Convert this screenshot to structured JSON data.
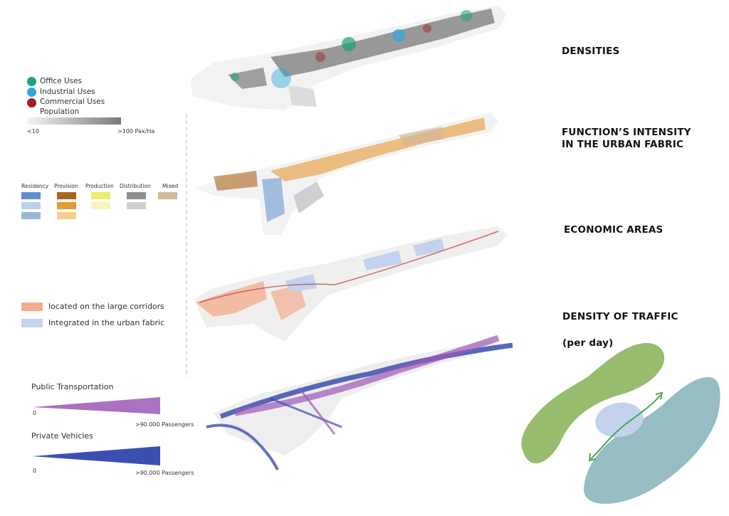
{
  "titles": {
    "densities": "DENSITIES",
    "function_line1": "FUNCTION’S INTENSITY",
    "function_line2": "IN THE URBAN FABRIC",
    "economic": "ECONOMIC  AREAS",
    "traffic": "DENSITY OF TRAFFIC",
    "traffic_sub": "(per day)"
  },
  "density_legend": {
    "items": [
      {
        "label": "Office Uses",
        "color": "#1fa37c"
      },
      {
        "label": "Industrial Uses",
        "color": "#2ba8dc"
      },
      {
        "label": "Commercial Uses",
        "color": "#a51d24"
      }
    ],
    "population_label": "Population",
    "scale_min": "<10",
    "scale_max": ">100 Pax/Ha"
  },
  "function_legend": {
    "groups": [
      {
        "label": "Residency",
        "colors": [
          "#5b8fd0",
          "#bcd0ee",
          "#9bb7d6"
        ]
      },
      {
        "label": "Provision",
        "colors": [
          "#a8651d",
          "#e69a33",
          "#f6cf8d"
        ]
      },
      {
        "label": "Production",
        "colors": [
          "#f1ea6b",
          "#f7f4b8"
        ]
      },
      {
        "label": "Distribution",
        "colors": [
          "#8f8f8f",
          "#cfcfcf"
        ]
      },
      {
        "label": "Mixed",
        "colors": [
          "#d4b896"
        ]
      }
    ]
  },
  "economic_legend": {
    "items": [
      {
        "label": "located on the large corridors",
        "color": "#f2ae8f"
      },
      {
        "label": "Integrated in the urban fabric",
        "color": "#c4d1ef"
      }
    ]
  },
  "traffic_legend": {
    "public": {
      "label": "Public Transportation",
      "min": "0",
      "max": ">90.000 Passengers",
      "color": "#9b59b6"
    },
    "private": {
      "label": "Private Vehicles",
      "min": "0",
      "max": ">90,000 Passengers",
      "color": "#3b4fb0"
    }
  },
  "diagram_colors": {
    "green": "#98bd6e",
    "teal": "#95bdc3",
    "blue": "#c3d3ee",
    "arrow": "#48a548"
  }
}
